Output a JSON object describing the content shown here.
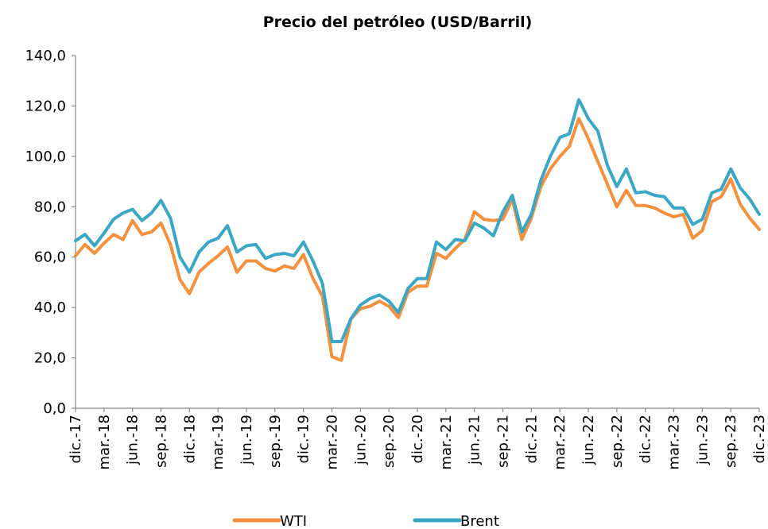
{
  "chart_data": {
    "type": "line",
    "title": "Precio del petróleo (USD/Barril)",
    "categories": [
      "dic.-17",
      null,
      null,
      "mar.-18",
      null,
      null,
      "jun.-18",
      null,
      null,
      "sep.-18",
      null,
      null,
      "dic.-18",
      null,
      null,
      "mar.-19",
      null,
      null,
      "jun.-19",
      null,
      null,
      "sep.-19",
      null,
      null,
      "dic.-19",
      null,
      null,
      "mar.-20",
      null,
      null,
      "jun.-20",
      null,
      null,
      "sep.-20",
      null,
      null,
      "dic.-20",
      null,
      null,
      "mar.-21",
      null,
      null,
      "jun.-21",
      null,
      null,
      "sep.-21",
      null,
      null,
      "dic.-21",
      null,
      null,
      "mar.-22",
      null,
      null,
      "jun.-22",
      null,
      null,
      "sep.-22",
      null,
      null,
      "dic.-22",
      null,
      null,
      "mar.-23",
      null,
      null,
      "jun.-23",
      null,
      null,
      "sep.-23",
      null,
      null,
      "dic.-23"
    ],
    "series": [
      {
        "name": "WTI",
        "color": "#f4913f",
        "values": [
          60.5,
          65,
          61.5,
          65.5,
          69,
          67,
          74.5,
          69,
          70,
          73.5,
          65,
          51,
          45.5,
          54,
          57.5,
          60.5,
          64,
          54,
          58.5,
          58.5,
          55.5,
          54.5,
          56.5,
          55.5,
          61,
          51.5,
          44.5,
          20.5,
          19,
          35.5,
          39.5,
          40.5,
          42.5,
          40.5,
          36,
          46,
          48.5,
          48.5,
          61.5,
          59.5,
          63.5,
          67,
          78,
          75,
          74.5,
          75,
          83,
          67,
          75.5,
          88,
          95,
          100,
          104,
          115,
          107,
          98,
          89,
          80,
          86.5,
          80.5,
          80.5,
          79.5,
          77.5,
          76,
          77,
          67.5,
          70.5,
          82,
          84,
          91,
          81,
          75.5,
          71
        ]
      },
      {
        "name": "Brent",
        "color": "#3ba7c4",
        "values": [
          66.5,
          69,
          64.5,
          69.5,
          75,
          77.5,
          79,
          74.5,
          77.5,
          82.5,
          75.5,
          60,
          54,
          62,
          66,
          67.5,
          72.5,
          62,
          64.5,
          65,
          59.5,
          61,
          61.5,
          60.5,
          66,
          58.5,
          49.5,
          26.5,
          26.5,
          35.5,
          41,
          43.5,
          45,
          42.5,
          38,
          47.5,
          51.5,
          51.5,
          66,
          63,
          67,
          66.5,
          73.5,
          71.5,
          68.5,
          78,
          84.5,
          70,
          77,
          90.5,
          100,
          107.5,
          109,
          122.5,
          115,
          110,
          96.5,
          88,
          95,
          85.5,
          86,
          84.5,
          84,
          79.5,
          79.5,
          73,
          75,
          85.5,
          87,
          95,
          87.5,
          83,
          77
        ]
      }
    ],
    "ylim": [
      0,
      140
    ],
    "yticks": [
      {
        "value": 0,
        "label": "0,0"
      },
      {
        "value": 20,
        "label": "20,0"
      },
      {
        "value": 40,
        "label": "40,0"
      },
      {
        "value": 60,
        "label": "60,0"
      },
      {
        "value": 80,
        "label": "80,0"
      },
      {
        "value": 100,
        "label": "100,0"
      },
      {
        "value": 120,
        "label": "120,0"
      },
      {
        "value": 140,
        "label": "140,0"
      }
    ],
    "grid": false,
    "legend": "bottom"
  }
}
